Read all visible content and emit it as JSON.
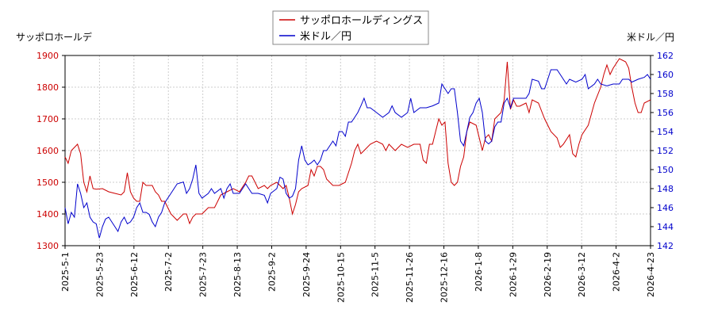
{
  "chart_data": {
    "type": "line",
    "title": "",
    "left_axis_label": "サッポロホールデ",
    "right_axis_label": "米ドル／円",
    "left_ylim": [
      1300,
      1900
    ],
    "left_ticks": [
      1300,
      1400,
      1500,
      1600,
      1700,
      1800,
      1900
    ],
    "right_ylim": [
      142,
      162
    ],
    "right_ticks": [
      142,
      144,
      146,
      148,
      150,
      152,
      154,
      156,
      158,
      160,
      162
    ],
    "x_tick_labels": [
      "2025-5-1",
      "2025-5-23",
      "2025-6-12",
      "2025-7-2",
      "2025-7-23",
      "2025-8-13",
      "2025-9-2",
      "2025-9-24",
      "2025-10-15",
      "2025-11-5",
      "2025-11-26",
      "2025-12-16",
      "2026-1-8",
      "2026-1-29",
      "2026-2-19",
      "2026-3-12",
      "2026-4-2",
      "2026-4-23"
    ],
    "grid": true,
    "legend_position": "top-center",
    "series": [
      {
        "name": "サッポロホールディングス",
        "axis": "left",
        "color": "#cc0000",
        "values": [
          [
            0,
            1580
          ],
          [
            0.5,
            1560
          ],
          [
            1,
            1600
          ],
          [
            2,
            1620
          ],
          [
            2.5,
            1590
          ],
          [
            3,
            1500
          ],
          [
            3.5,
            1470
          ],
          [
            4,
            1520
          ],
          [
            4.5,
            1480
          ],
          [
            5,
            1478
          ],
          [
            6,
            1480
          ],
          [
            7,
            1470
          ],
          [
            8,
            1465
          ],
          [
            9,
            1460
          ],
          [
            9.5,
            1470
          ],
          [
            10,
            1530
          ],
          [
            10.5,
            1470
          ],
          [
            11,
            1450
          ],
          [
            11.5,
            1440
          ],
          [
            12,
            1440
          ],
          [
            12.5,
            1500
          ],
          [
            13,
            1490
          ],
          [
            14,
            1490
          ],
          [
            14.5,
            1470
          ],
          [
            15,
            1460
          ],
          [
            15.5,
            1440
          ],
          [
            16,
            1440
          ],
          [
            16.5,
            1420
          ],
          [
            17,
            1400
          ],
          [
            17.5,
            1390
          ],
          [
            18,
            1380
          ],
          [
            19,
            1400
          ],
          [
            19.5,
            1400
          ],
          [
            20,
            1370
          ],
          [
            20.5,
            1390
          ],
          [
            21,
            1400
          ],
          [
            22,
            1400
          ],
          [
            22.5,
            1410
          ],
          [
            23,
            1420
          ],
          [
            24,
            1420
          ],
          [
            24.5,
            1440
          ],
          [
            25,
            1460
          ],
          [
            26,
            1470
          ],
          [
            27,
            1480
          ],
          [
            28,
            1470
          ],
          [
            29,
            1500
          ],
          [
            29.5,
            1520
          ],
          [
            30,
            1520
          ],
          [
            30.5,
            1500
          ],
          [
            31,
            1480
          ],
          [
            32,
            1490
          ],
          [
            32.5,
            1480
          ],
          [
            33,
            1490
          ],
          [
            34,
            1500
          ],
          [
            35,
            1480
          ],
          [
            35.5,
            1490
          ],
          [
            36,
            1450
          ],
          [
            36.5,
            1400
          ],
          [
            37,
            1430
          ],
          [
            37.5,
            1470
          ],
          [
            38,
            1480
          ],
          [
            39,
            1490
          ],
          [
            39.5,
            1540
          ],
          [
            40,
            1520
          ],
          [
            40.5,
            1550
          ],
          [
            41,
            1550
          ],
          [
            41.5,
            1540
          ],
          [
            42,
            1510
          ],
          [
            42.5,
            1500
          ],
          [
            43,
            1490
          ],
          [
            44,
            1490
          ],
          [
            45,
            1500
          ],
          [
            46,
            1560
          ],
          [
            46.5,
            1600
          ],
          [
            47,
            1620
          ],
          [
            47.5,
            1590
          ],
          [
            48,
            1600
          ],
          [
            49,
            1620
          ],
          [
            50,
            1630
          ],
          [
            51,
            1620
          ],
          [
            51.5,
            1600
          ],
          [
            52,
            1620
          ],
          [
            53,
            1600
          ],
          [
            54,
            1620
          ],
          [
            55,
            1610
          ],
          [
            56,
            1620
          ],
          [
            57,
            1620
          ],
          [
            57.5,
            1570
          ],
          [
            58,
            1560
          ],
          [
            58.5,
            1620
          ],
          [
            59,
            1620
          ],
          [
            59.5,
            1660
          ],
          [
            60,
            1700
          ],
          [
            60.5,
            1680
          ],
          [
            61,
            1690
          ],
          [
            61.5,
            1560
          ],
          [
            62,
            1500
          ],
          [
            62.5,
            1490
          ],
          [
            63,
            1500
          ],
          [
            63.5,
            1550
          ],
          [
            64,
            1580
          ],
          [
            64.5,
            1660
          ],
          [
            65,
            1690
          ],
          [
            66,
            1680
          ],
          [
            66.5,
            1640
          ],
          [
            67,
            1600
          ],
          [
            67.5,
            1640
          ],
          [
            68,
            1650
          ],
          [
            68.5,
            1630
          ],
          [
            69,
            1700
          ],
          [
            70,
            1720
          ],
          [
            70.5,
            1760
          ],
          [
            71,
            1880
          ],
          [
            71.5,
            1730
          ],
          [
            72,
            1760
          ],
          [
            72.5,
            1740
          ],
          [
            73,
            1740
          ],
          [
            74,
            1750
          ],
          [
            74.5,
            1720
          ],
          [
            75,
            1760
          ],
          [
            76,
            1750
          ],
          [
            77,
            1700
          ],
          [
            77.5,
            1680
          ],
          [
            78,
            1660
          ],
          [
            79,
            1640
          ],
          [
            79.5,
            1610
          ],
          [
            80,
            1620
          ],
          [
            81,
            1650
          ],
          [
            81.5,
            1590
          ],
          [
            82,
            1580
          ],
          [
            82.5,
            1620
          ],
          [
            83,
            1650
          ],
          [
            84,
            1680
          ],
          [
            85,
            1750
          ],
          [
            86,
            1800
          ],
          [
            86.5,
            1840
          ],
          [
            87,
            1870
          ],
          [
            87.5,
            1840
          ],
          [
            88,
            1860
          ],
          [
            89,
            1890
          ],
          [
            90,
            1880
          ],
          [
            90.5,
            1860
          ],
          [
            91,
            1800
          ],
          [
            91.5,
            1750
          ],
          [
            92,
            1720
          ],
          [
            92.5,
            1720
          ],
          [
            93,
            1750
          ],
          [
            94,
            1760
          ]
        ]
      },
      {
        "name": "米ドル／円",
        "axis": "right",
        "color": "#0000cc",
        "values": [
          [
            0,
            146
          ],
          [
            0.5,
            144.3
          ],
          [
            1,
            145.5
          ],
          [
            1.5,
            145
          ],
          [
            2,
            148.5
          ],
          [
            2.5,
            147.5
          ],
          [
            3,
            146
          ],
          [
            3.5,
            146.5
          ],
          [
            4,
            145
          ],
          [
            4.5,
            144.5
          ],
          [
            5,
            144.3
          ],
          [
            5.5,
            142.8
          ],
          [
            6,
            144
          ],
          [
            6.5,
            144.8
          ],
          [
            7,
            145
          ],
          [
            7.5,
            144.5
          ],
          [
            8,
            144
          ],
          [
            8.5,
            143.5
          ],
          [
            9,
            144.5
          ],
          [
            9.5,
            145
          ],
          [
            10,
            144.3
          ],
          [
            10.5,
            144.5
          ],
          [
            11,
            145
          ],
          [
            11.5,
            146
          ],
          [
            12,
            146.5
          ],
          [
            12.5,
            145.5
          ],
          [
            13,
            145.5
          ],
          [
            13.5,
            145.3
          ],
          [
            14,
            144.5
          ],
          [
            14.5,
            144
          ],
          [
            15,
            145
          ],
          [
            15.5,
            145.5
          ],
          [
            16,
            146.5
          ],
          [
            16.5,
            147
          ],
          [
            17,
            147.5
          ],
          [
            17.5,
            148
          ],
          [
            18,
            148.5
          ],
          [
            19,
            148.7
          ],
          [
            19.5,
            147.5
          ],
          [
            20,
            148
          ],
          [
            20.5,
            149
          ],
          [
            21,
            150.5
          ],
          [
            21.5,
            147.5
          ],
          [
            22,
            147
          ],
          [
            23,
            147.5
          ],
          [
            23.5,
            148
          ],
          [
            24,
            147.5
          ],
          [
            25,
            148
          ],
          [
            25.5,
            147
          ],
          [
            26,
            148
          ],
          [
            26.5,
            148.5
          ],
          [
            27,
            147.5
          ],
          [
            28,
            147.5
          ],
          [
            29,
            148.5
          ],
          [
            29.5,
            148
          ],
          [
            30,
            147.5
          ],
          [
            31,
            147.5
          ],
          [
            32,
            147.3
          ],
          [
            32.5,
            146.5
          ],
          [
            33,
            147.5
          ],
          [
            34,
            148
          ],
          [
            34.5,
            149.2
          ],
          [
            35,
            149
          ],
          [
            35.5,
            147.5
          ],
          [
            36,
            147
          ],
          [
            36.5,
            147.2
          ],
          [
            37,
            148
          ],
          [
            37.5,
            151
          ],
          [
            38,
            152.5
          ],
          [
            38.5,
            151
          ],
          [
            39,
            150.5
          ],
          [
            39.5,
            150.7
          ],
          [
            40,
            151
          ],
          [
            40.5,
            150.5
          ],
          [
            41,
            151
          ],
          [
            41.5,
            152
          ],
          [
            42,
            152
          ],
          [
            43,
            153
          ],
          [
            43.5,
            152.5
          ],
          [
            44,
            154
          ],
          [
            44.5,
            154
          ],
          [
            45,
            153.5
          ],
          [
            45.5,
            155
          ],
          [
            46,
            155
          ],
          [
            46.5,
            155.5
          ],
          [
            47,
            156
          ],
          [
            47.5,
            156.7
          ],
          [
            48,
            157.5
          ],
          [
            48.5,
            156.5
          ],
          [
            49,
            156.5
          ],
          [
            50,
            156
          ],
          [
            51,
            155.5
          ],
          [
            52,
            156
          ],
          [
            52.5,
            156.7
          ],
          [
            53,
            156
          ],
          [
            54,
            155.5
          ],
          [
            55,
            156
          ],
          [
            55.5,
            157.5
          ],
          [
            56,
            156
          ],
          [
            57,
            156.5
          ],
          [
            58,
            156.5
          ],
          [
            59,
            156.7
          ],
          [
            60,
            157
          ],
          [
            60.5,
            159
          ],
          [
            61,
            158.5
          ],
          [
            61.5,
            158
          ],
          [
            62,
            158.5
          ],
          [
            62.5,
            158.5
          ],
          [
            63,
            156
          ],
          [
            63.5,
            153
          ],
          [
            64,
            152.5
          ],
          [
            64.5,
            154
          ],
          [
            65,
            155.5
          ],
          [
            65.5,
            156
          ],
          [
            66,
            157
          ],
          [
            66.5,
            157.5
          ],
          [
            67,
            156
          ],
          [
            67.5,
            153
          ],
          [
            68,
            152.7
          ],
          [
            68.5,
            153
          ],
          [
            69,
            154.5
          ],
          [
            69.5,
            155
          ],
          [
            70,
            155
          ],
          [
            70.5,
            157
          ],
          [
            71,
            157.5
          ],
          [
            71.5,
            156.5
          ],
          [
            72,
            157.5
          ],
          [
            73,
            157.5
          ],
          [
            74,
            157.5
          ],
          [
            74.5,
            158
          ],
          [
            75,
            159.5
          ],
          [
            76,
            159.3
          ],
          [
            76.5,
            158.5
          ],
          [
            77,
            158.5
          ],
          [
            77.5,
            159.5
          ],
          [
            78,
            160.5
          ],
          [
            79,
            160.5
          ],
          [
            79.5,
            160
          ],
          [
            80,
            159.5
          ],
          [
            80.5,
            159
          ],
          [
            81,
            159.5
          ],
          [
            82,
            159.2
          ],
          [
            83,
            159.5
          ],
          [
            83.5,
            160
          ],
          [
            84,
            158.5
          ],
          [
            85,
            159
          ],
          [
            85.5,
            159.5
          ],
          [
            86,
            159
          ],
          [
            87,
            158.8
          ],
          [
            88,
            159
          ],
          [
            89,
            159
          ],
          [
            89.5,
            159.5
          ],
          [
            90,
            159.5
          ],
          [
            90.5,
            159.5
          ],
          [
            91,
            159.2
          ],
          [
            92,
            159.5
          ],
          [
            93,
            159.7
          ],
          [
            93.5,
            160
          ],
          [
            94,
            159.5
          ]
        ]
      }
    ]
  }
}
